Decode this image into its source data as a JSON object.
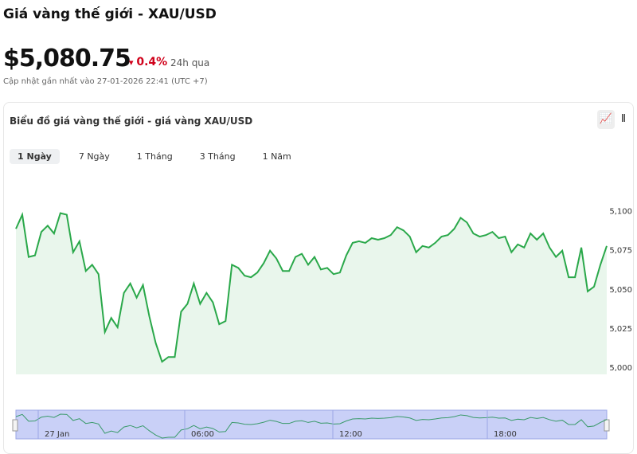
{
  "header": {
    "title": "Giá vàng thế giới - XAU/USD",
    "price": "$5,080.75",
    "change": "0.4%",
    "change_period": "24h qua",
    "updated": "Cập nhật gần nhất vào 27-01-2026 22:41 (UTC +7)"
  },
  "tabs": [
    "1 Ngày",
    "7 Ngày",
    "1 Tháng",
    "3 Tháng",
    "1 Năm"
  ],
  "navigator": {
    "labels": [
      "27 Jan",
      "06:00",
      "12:00",
      "18:00"
    ]
  },
  "chart_data": {
    "type": "line",
    "title": "Biểu đồ giá vàng thế giới - giá vàng XAU/USD",
    "color": "#2aa84a",
    "grid": false,
    "ylim": [
      5000,
      5110
    ],
    "yticks": [
      {
        "value": 5000,
        "label": "5,000"
      },
      {
        "value": 5025,
        "label": "5,025"
      },
      {
        "value": 5050,
        "label": "5,050"
      },
      {
        "value": 5075,
        "label": "5,075"
      },
      {
        "value": 5100,
        "label": "5,100"
      }
    ],
    "values": [
      5089,
      5098,
      5071,
      5072,
      5087,
      5091,
      5086,
      5099,
      5098,
      5074,
      5081,
      5062,
      5066,
      5060,
      5023,
      5032,
      5026,
      5048,
      5054,
      5045,
      5053,
      5033,
      5016,
      5004,
      5007,
      5007,
      5036,
      5041,
      5054,
      5041,
      5048,
      5042,
      5028,
      5030,
      5066,
      5064,
      5059,
      5058,
      5061,
      5067,
      5075,
      5070,
      5062,
      5062,
      5071,
      5073,
      5066,
      5071,
      5063,
      5064,
      5060,
      5061,
      5072,
      5080,
      5081,
      5080,
      5083,
      5082,
      5083,
      5085,
      5090,
      5088,
      5084,
      5074,
      5078,
      5077,
      5080,
      5084,
      5085,
      5089,
      5096,
      5093,
      5086,
      5084,
      5085,
      5087,
      5083,
      5084,
      5074,
      5079,
      5077,
      5086,
      5082,
      5086,
      5077,
      5071,
      5075,
      5058,
      5058,
      5077,
      5049,
      5052,
      5066,
      5078
    ]
  }
}
